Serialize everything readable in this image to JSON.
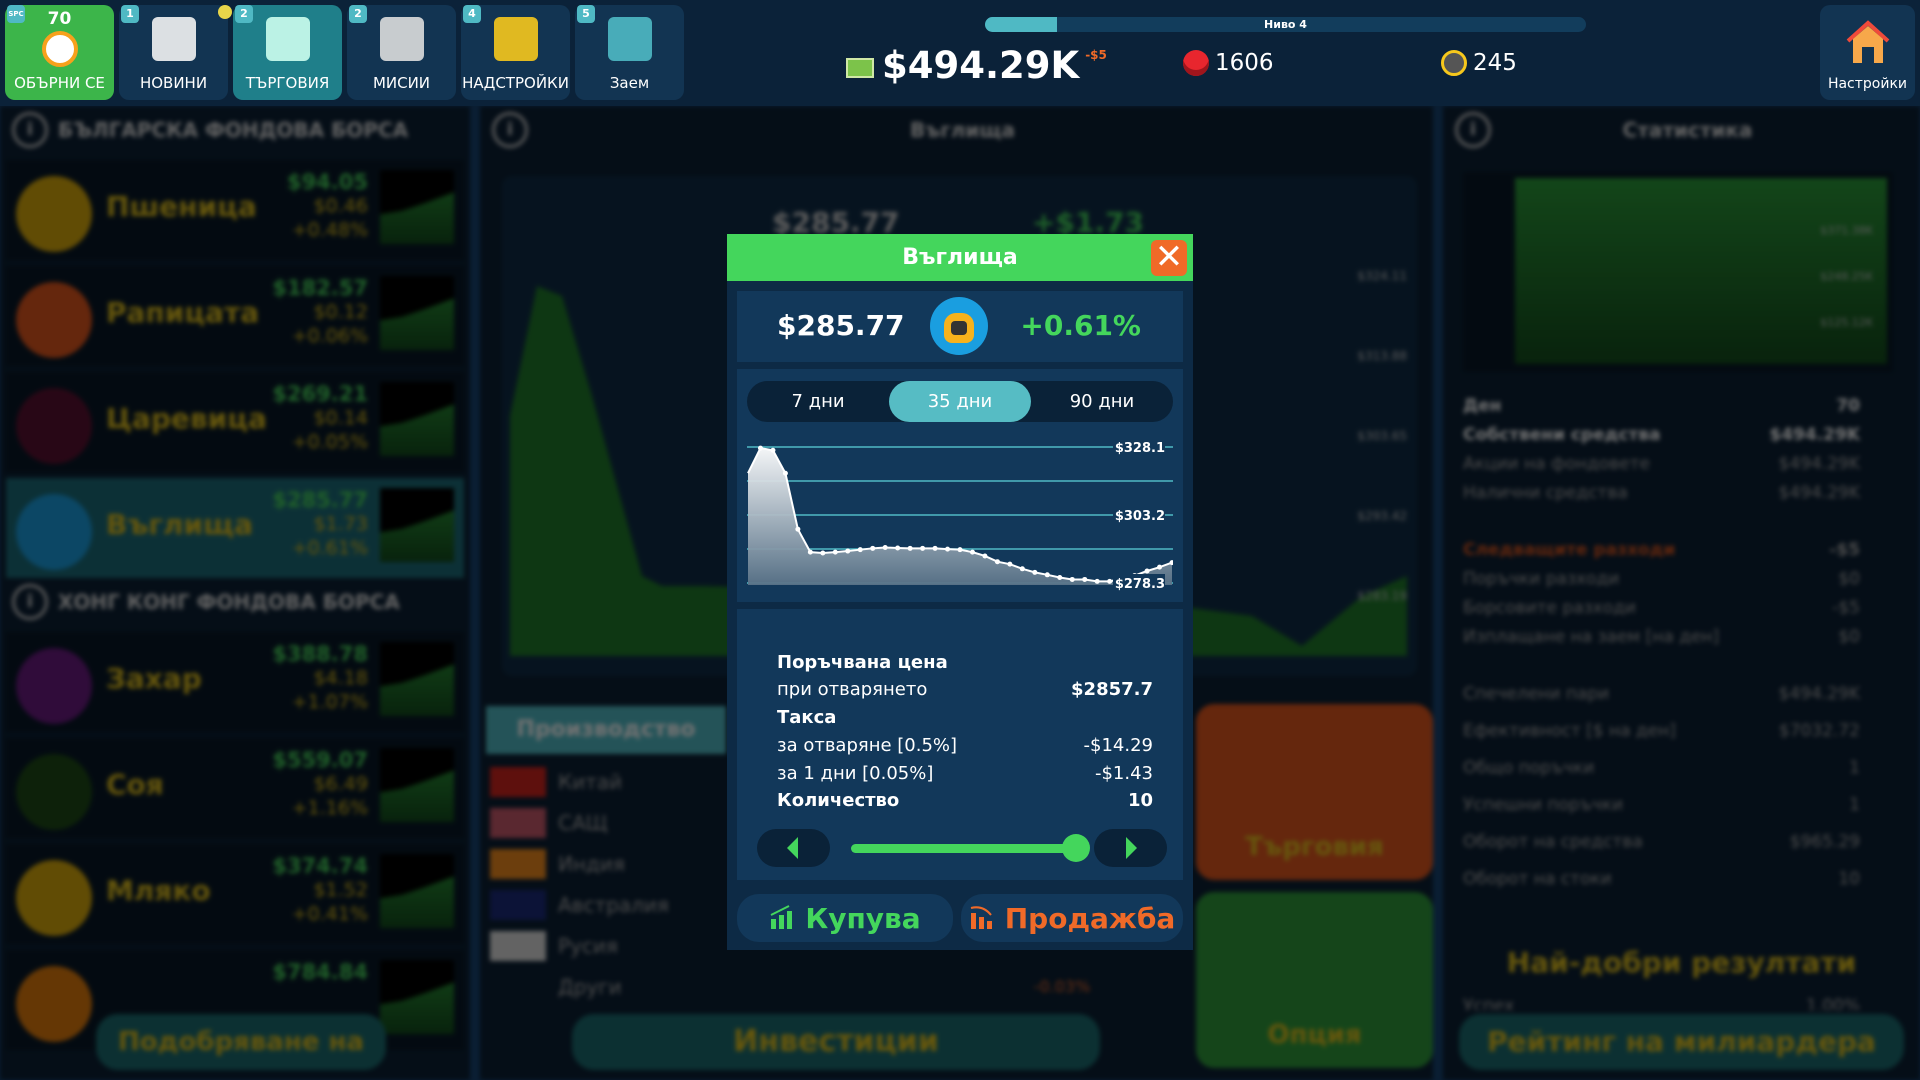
{
  "topbar": {
    "tiles": [
      {
        "label": "ОБЪРНИ СЕ",
        "badge": "SPC",
        "count": "70",
        "icon": "clock-icon"
      },
      {
        "label": "НОВИНИ",
        "badge": "1",
        "icon": "news-icon"
      },
      {
        "label": "ТЪРГОВИЯ",
        "badge": "2",
        "icon": "chart-icon"
      },
      {
        "label": "МИСИИ",
        "badge": "2",
        "icon": "rocket-icon"
      },
      {
        "label": "НАДСТРОЙКИ",
        "badge": "4",
        "icon": "desk-icon"
      },
      {
        "label": "Заем",
        "badge": "5",
        "icon": "loan-icon"
      }
    ],
    "level_label": "Ниво 4",
    "level_progress": 0.12,
    "money": "$494.29K",
    "money_delta": "-$5",
    "gold": "1606",
    "tokens": "245",
    "settings_label": "Настройки"
  },
  "left": {
    "sections": [
      {
        "title": "БЪЛГАРСКА ФОНДОВА БОРСА",
        "items": [
          {
            "name": "Пшеница",
            "price": "$94.05",
            "change": "$0.46",
            "pct": "+0.48%",
            "color": "#d8a90c"
          },
          {
            "name": "Рапицата",
            "price": "$182.57",
            "change": "$0.12",
            "pct": "+0.06%",
            "color": "#e0561c"
          },
          {
            "name": "Царевица",
            "price": "$269.21",
            "change": "$0.14",
            "pct": "+0.05%",
            "color": "#5a1030"
          },
          {
            "name": "Въглища",
            "price": "$285.77",
            "change": "$1.73",
            "pct": "+0.61%",
            "color": "#1a9ee0"
          }
        ]
      },
      {
        "title": "ХОНГ КОНГ ФОНДОВА БОРСА",
        "items": [
          {
            "name": "Захар",
            "price": "$388.78",
            "change": "$4.18",
            "pct": "+1.07%",
            "color": "#6a1a80"
          },
          {
            "name": "Соя",
            "price": "$559.07",
            "change": "$6.49",
            "pct": "+1.16%",
            "color": "#1d4a16"
          },
          {
            "name": "Мляко",
            "price": "$374.74",
            "change": "$1.52",
            "pct": "+0.41%",
            "color": "#d8a90c"
          },
          {
            "name": "",
            "price": "$784.84",
            "change": "",
            "pct": "",
            "color": "#e07b0c"
          }
        ]
      }
    ],
    "upgrade_button": "Подобряване на"
  },
  "center": {
    "title": "Въглища",
    "price": "$285.77",
    "change": "+$1.73",
    "axis_labels": [
      "$324.11",
      "$313.88",
      "$303.65",
      "$293.42",
      "$283.19"
    ],
    "production_title": "Производство",
    "countries": [
      "Китай",
      "САЩ",
      "Индия",
      "Австралия",
      "Русия",
      "Други"
    ],
    "other_pct": "-0.03%",
    "invest_button": "Инвестиции",
    "trade_card": "Търговия",
    "option_card": "Опция"
  },
  "right": {
    "title": "Статистика",
    "chart_labels": [
      "$371.38K",
      "$248.25K",
      "$125.12K"
    ],
    "stats1": [
      {
        "label": "Ден",
        "value": "70",
        "bold": true
      },
      {
        "label": "Собствени средства",
        "value": "$494.29K",
        "bold": true
      },
      {
        "label": "Акции на фондовете",
        "value": "$494.29K"
      },
      {
        "label": "Налични средства",
        "value": "$494.29K"
      }
    ],
    "stats2": [
      {
        "label": "Следващите разходи",
        "value": "-$5",
        "accent": true
      },
      {
        "label": "Поръчки разходи",
        "value": "$0"
      },
      {
        "label": "Борсовите разходи",
        "value": "-$5"
      },
      {
        "label": "Изплащане на заем [на ден]",
        "value": "$0"
      }
    ],
    "stats3": [
      {
        "label": "Спечелени пари",
        "value": "$494.29K"
      },
      {
        "label": "Ефективност [$ на ден]",
        "value": "$7032.72"
      },
      {
        "label": "Общо поръчки",
        "value": "1"
      },
      {
        "label": "Успешни поръчки",
        "value": "1"
      },
      {
        "label": "Оборот на средства",
        "value": "$965.29"
      },
      {
        "label": "Оборот на стоки",
        "value": "10"
      }
    ],
    "best_title": "Най-добри резултати",
    "best_row": {
      "label": "Успех",
      "value": "1.00%"
    },
    "rating_button": "Рейтинг на милиардера"
  },
  "modal": {
    "title": "Въглища",
    "price": "$285.77",
    "pct": "+0.61%",
    "tabs": [
      "7 дни",
      "35 дни",
      "90 дни"
    ],
    "active_tab": 1,
    "order_price_label": "Поръчвана цена",
    "at_open_label": "при отварянето",
    "at_open_value": "$2857.7",
    "fee_label": "Такса",
    "open_fee_label": "за отваряне [0.5%]",
    "open_fee_value": "-$14.29",
    "day_fee_label": "за 1 дни [0.05%]",
    "day_fee_value": "-$1.43",
    "qty_label": "Количество",
    "qty_value": "10",
    "slider_level": 0.95,
    "buy_label": "Купува",
    "sell_label": "Продажба",
    "colors": {
      "green": "#44d65c",
      "orange": "#f06a28",
      "accent": "#56bcc4"
    }
  },
  "chart_data": {
    "type": "area",
    "ylim": [
      278.3,
      328.1
    ],
    "ytick_labels": [
      "$328.1",
      "$303.2",
      "$278.3"
    ],
    "yticks": [
      328.1,
      303.2,
      278.3
    ],
    "grid": true,
    "values": [
      318.5,
      327.7,
      326.9,
      318.5,
      298.0,
      289.6,
      289.3,
      289.6,
      290.0,
      290.5,
      291.0,
      291.3,
      291.1,
      291.0,
      291.0,
      291.0,
      290.7,
      290.5,
      289.6,
      288.2,
      286.1,
      285.2,
      283.5,
      282.2,
      281.3,
      280.3,
      279.6,
      279.6,
      278.9,
      278.9,
      279.9,
      281.0,
      282.7,
      284.1,
      285.77
    ]
  }
}
